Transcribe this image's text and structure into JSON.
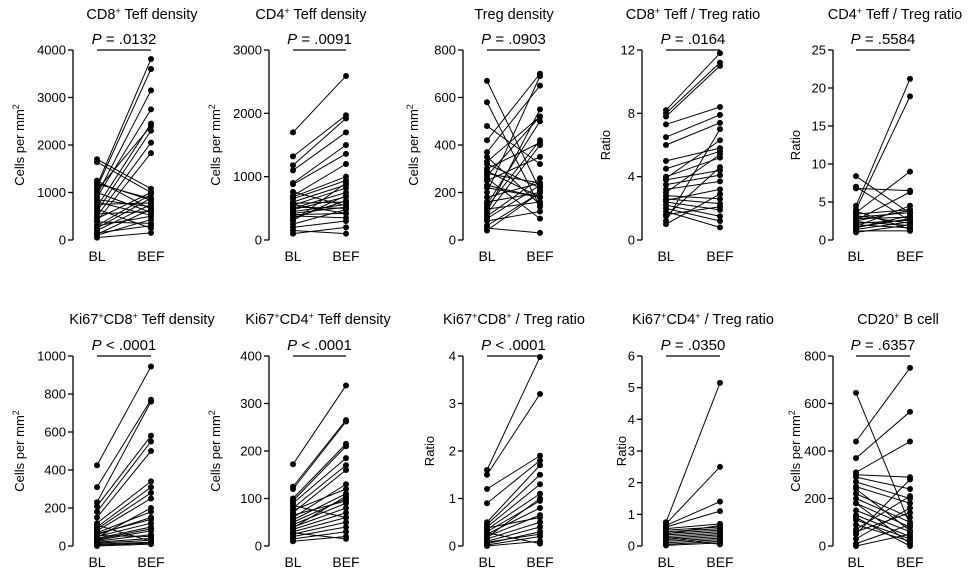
{
  "figure": {
    "categories": [
      "BL",
      "BEF"
    ],
    "colors": {
      "ink": "#000000",
      "background": "#ffffff"
    }
  },
  "chart_data": [
    {
      "type": "scatter",
      "title": {
        "pre": "CD8",
        "sup": "+",
        "post": " Teff density"
      },
      "ylabel": {
        "text": "Cells per mm",
        "sup": "2"
      },
      "ylim": [
        0,
        4000
      ],
      "yticks": [
        0,
        1000,
        2000,
        3000,
        4000
      ],
      "p_value": ".0132",
      "p_op": "=",
      "categories": [
        "BL",
        "BEF"
      ],
      "pairs": [
        [
          1700,
          1080
        ],
        [
          1640,
          1000
        ],
        [
          1250,
          650
        ],
        [
          1200,
          840
        ],
        [
          1150,
          3810
        ],
        [
          1100,
          3600
        ],
        [
          1000,
          580
        ],
        [
          950,
          3150
        ],
        [
          900,
          2750
        ],
        [
          850,
          700
        ],
        [
          800,
          520
        ],
        [
          700,
          2450
        ],
        [
          600,
          2300
        ],
        [
          500,
          2050
        ],
        [
          400,
          1830
        ],
        [
          300,
          960
        ],
        [
          250,
          880
        ],
        [
          200,
          750
        ],
        [
          150,
          300
        ],
        [
          100,
          430
        ],
        [
          50,
          150
        ],
        [
          380,
          350
        ],
        [
          450,
          1000
        ],
        [
          550,
          600
        ],
        [
          650,
          250
        ],
        [
          750,
          780
        ],
        [
          1050,
          2400
        ],
        [
          1180,
          870
        ],
        [
          120,
          650
        ],
        [
          300,
          500
        ]
      ]
    },
    {
      "type": "scatter",
      "title": {
        "pre": "CD4",
        "sup": "+",
        "post": " Teff density"
      },
      "ylabel": {
        "text": "Cells per mm",
        "sup": "2"
      },
      "ylim": [
        0,
        3000
      ],
      "yticks": [
        0,
        1000,
        2000,
        3000
      ],
      "p_value": ".0091",
      "p_op": "=",
      "categories": [
        "BL",
        "BEF"
      ],
      "pairs": [
        [
          1700,
          2590
        ],
        [
          1320,
          1970
        ],
        [
          1180,
          1920
        ],
        [
          1100,
          1700
        ],
        [
          900,
          1500
        ],
        [
          880,
          1360
        ],
        [
          700,
          1200
        ],
        [
          650,
          940
        ],
        [
          600,
          870
        ],
        [
          580,
          600
        ],
        [
          550,
          820
        ],
        [
          520,
          500
        ],
        [
          500,
          750
        ],
        [
          480,
          680
        ],
        [
          450,
          560
        ],
        [
          420,
          520
        ],
        [
          400,
          420
        ],
        [
          380,
          350
        ],
        [
          350,
          620
        ],
        [
          300,
          900
        ],
        [
          250,
          480
        ],
        [
          200,
          300
        ],
        [
          150,
          100
        ],
        [
          100,
          200
        ],
        [
          680,
          1000
        ],
        [
          760,
          540
        ],
        [
          320,
          700
        ],
        [
          560,
          420
        ]
      ]
    },
    {
      "type": "scatter",
      "title": {
        "pre": "Treg density",
        "sup": "",
        "post": ""
      },
      "ylabel": {
        "text": "Cells per mm",
        "sup": "2"
      },
      "ylim": [
        0,
        800
      ],
      "yticks": [
        0,
        200,
        400,
        600,
        800
      ],
      "p_value": ".0903",
      "p_op": "=",
      "categories": [
        "BL",
        "BEF"
      ],
      "pairs": [
        [
          670,
          210
        ],
        [
          580,
          140
        ],
        [
          480,
          320
        ],
        [
          420,
          700
        ],
        [
          370,
          650
        ],
        [
          350,
          150
        ],
        [
          330,
          520
        ],
        [
          300,
          410
        ],
        [
          290,
          180
        ],
        [
          280,
          240
        ],
        [
          260,
          90
        ],
        [
          250,
          350
        ],
        [
          220,
          180
        ],
        [
          200,
          690
        ],
        [
          180,
          240
        ],
        [
          160,
          200
        ],
        [
          150,
          500
        ],
        [
          140,
          420
        ],
        [
          130,
          160
        ],
        [
          120,
          550
        ],
        [
          100,
          260
        ],
        [
          90,
          230
        ],
        [
          80,
          120
        ],
        [
          60,
          200
        ],
        [
          50,
          30
        ],
        [
          40,
          200
        ],
        [
          320,
          220
        ],
        [
          230,
          180
        ],
        [
          110,
          400
        ],
        [
          270,
          520
        ]
      ]
    },
    {
      "type": "scatter",
      "title": {
        "pre": "CD8",
        "sup": "+",
        "post": " Teff / Treg ratio"
      },
      "ylabel": {
        "text": "Ratio",
        "sup": ""
      },
      "ylim": [
        0,
        12
      ],
      "yticks": [
        0,
        4,
        8,
        12
      ],
      "p_value": ".0164",
      "p_op": "=",
      "categories": [
        "BL",
        "BEF"
      ],
      "pairs": [
        [
          8.2,
          11.8
        ],
        [
          8.0,
          11.2
        ],
        [
          7.8,
          11.0
        ],
        [
          7.3,
          8.4
        ],
        [
          6.5,
          7.9
        ],
        [
          6.0,
          7.4
        ],
        [
          5.0,
          5.8
        ],
        [
          4.5,
          5.6
        ],
        [
          4.0,
          5.2
        ],
        [
          3.8,
          4.4
        ],
        [
          3.5,
          4.1
        ],
        [
          3.2,
          3.7
        ],
        [
          3.0,
          5.4
        ],
        [
          2.8,
          2.6
        ],
        [
          2.6,
          2.3
        ],
        [
          2.4,
          1.9
        ],
        [
          2.2,
          1.5
        ],
        [
          2.0,
          1.2
        ],
        [
          1.8,
          0.8
        ],
        [
          1.5,
          4.6
        ],
        [
          1.2,
          7.0
        ],
        [
          1.0,
          2.9
        ],
        [
          2.5,
          3.2
        ],
        [
          3.9,
          6.3
        ],
        [
          1.6,
          2.1
        ]
      ]
    },
    {
      "type": "scatter",
      "title": {
        "pre": "CD4",
        "sup": "+",
        "post": " Teff / Treg ratio"
      },
      "ylabel": {
        "text": "Ratio",
        "sup": ""
      },
      "ylim": [
        0,
        25
      ],
      "yticks": [
        0,
        5,
        10,
        15,
        20,
        25
      ],
      "p_value": ".5584",
      "p_op": "=",
      "categories": [
        "BL",
        "BEF"
      ],
      "pairs": [
        [
          8.4,
          3.5
        ],
        [
          7.0,
          2.5
        ],
        [
          6.8,
          6.5
        ],
        [
          4.5,
          21.2
        ],
        [
          4.0,
          18.9
        ],
        [
          3.6,
          9.0
        ],
        [
          3.4,
          4.0
        ],
        [
          3.2,
          2.2
        ],
        [
          3.0,
          3.6
        ],
        [
          2.8,
          3.0
        ],
        [
          2.6,
          6.3
        ],
        [
          2.4,
          1.9
        ],
        [
          2.2,
          2.6
        ],
        [
          2.0,
          1.6
        ],
        [
          1.8,
          4.5
        ],
        [
          1.6,
          3.2
        ],
        [
          1.4,
          2.4
        ],
        [
          1.2,
          1.2
        ],
        [
          1.0,
          2.0
        ],
        [
          3.8,
          1.4
        ],
        [
          2.5,
          3.9
        ],
        [
          1.7,
          2.8
        ]
      ]
    },
    {
      "type": "scatter",
      "title": {
        "pre": "Ki67",
        "sup": "+",
        "post": "CD8",
        "sup2": "+",
        "post2": " Teff density"
      },
      "ylabel": {
        "text": "Cells per mm",
        "sup": "2"
      },
      "ylim": [
        0,
        1000
      ],
      "yticks": [
        0,
        200,
        400,
        600,
        800,
        1000
      ],
      "p_value": ".0001",
      "p_op": "<",
      "categories": [
        "BL",
        "BEF"
      ],
      "pairs": [
        [
          425,
          945
        ],
        [
          310,
          770
        ],
        [
          230,
          760
        ],
        [
          210,
          580
        ],
        [
          180,
          550
        ],
        [
          150,
          500
        ],
        [
          120,
          340
        ],
        [
          100,
          310
        ],
        [
          90,
          280
        ],
        [
          80,
          250
        ],
        [
          70,
          180
        ],
        [
          60,
          150
        ],
        [
          50,
          120
        ],
        [
          40,
          100
        ],
        [
          30,
          80
        ],
        [
          25,
          60
        ],
        [
          20,
          40
        ],
        [
          15,
          30
        ],
        [
          10,
          20
        ],
        [
          5,
          15
        ],
        [
          0,
          10
        ],
        [
          45,
          200
        ],
        [
          35,
          90
        ],
        [
          55,
          50
        ],
        [
          65,
          140
        ],
        [
          110,
          25
        ]
      ]
    },
    {
      "type": "scatter",
      "title": {
        "pre": "Ki67",
        "sup": "+",
        "post": "CD4",
        "sup2": "+",
        "post2": " Teff density"
      },
      "ylabel": {
        "text": "Cells per mm",
        "sup": "2"
      },
      "ylim": [
        0,
        400
      ],
      "yticks": [
        0,
        100,
        200,
        300,
        400
      ],
      "p_value": ".0001",
      "p_op": "<",
      "categories": [
        "BL",
        "BEF"
      ],
      "pairs": [
        [
          172,
          338
        ],
        [
          125,
          265
        ],
        [
          120,
          262
        ],
        [
          100,
          215
        ],
        [
          95,
          210
        ],
        [
          90,
          185
        ],
        [
          80,
          170
        ],
        [
          70,
          160
        ],
        [
          60,
          130
        ],
        [
          55,
          110
        ],
        [
          50,
          100
        ],
        [
          45,
          90
        ],
        [
          40,
          80
        ],
        [
          35,
          70
        ],
        [
          30,
          60
        ],
        [
          25,
          50
        ],
        [
          20,
          40
        ],
        [
          15,
          30
        ],
        [
          10,
          20
        ],
        [
          65,
          95
        ],
        [
          75,
          120
        ],
        [
          85,
          60
        ],
        [
          38,
          105
        ],
        [
          28,
          15
        ]
      ]
    },
    {
      "type": "scatter",
      "title": {
        "pre": "Ki67",
        "sup": "+",
        "post": "CD8",
        "sup2": "+",
        "post2": " / Treg ratio"
      },
      "ylabel": {
        "text": "Ratio",
        "sup": ""
      },
      "ylim": [
        0,
        4
      ],
      "yticks": [
        0,
        1,
        2,
        3,
        4
      ],
      "p_value": ".0001",
      "p_op": "<",
      "categories": [
        "BL",
        "BEF"
      ],
      "pairs": [
        [
          1.6,
          3.98
        ],
        [
          1.5,
          3.2
        ],
        [
          1.2,
          1.9
        ],
        [
          0.9,
          1.8
        ],
        [
          0.5,
          1.7
        ],
        [
          0.45,
          1.5
        ],
        [
          0.4,
          1.3
        ],
        [
          0.35,
          1.1
        ],
        [
          0.3,
          0.95
        ],
        [
          0.25,
          0.8
        ],
        [
          0.2,
          0.65
        ],
        [
          0.15,
          0.5
        ],
        [
          0.1,
          0.4
        ],
        [
          0.05,
          0.3
        ],
        [
          0.02,
          0.2
        ],
        [
          0.0,
          0.1
        ],
        [
          0.28,
          0.05
        ],
        [
          0.38,
          0.6
        ],
        [
          0.18,
          1.0
        ],
        [
          0.08,
          0.25
        ]
      ]
    },
    {
      "type": "scatter",
      "title": {
        "pre": "Ki67",
        "sup": "+",
        "post": "CD4",
        "sup2": "+",
        "post2": " / Treg ratio"
      },
      "ylabel": {
        "text": "Ratio",
        "sup": ""
      },
      "ylim": [
        0,
        6
      ],
      "yticks": [
        0,
        1,
        2,
        3,
        4,
        5,
        6
      ],
      "p_value": ".0350",
      "p_op": "=",
      "categories": [
        "BL",
        "BEF"
      ],
      "pairs": [
        [
          0.75,
          5.15
        ],
        [
          0.7,
          2.5
        ],
        [
          0.65,
          1.4
        ],
        [
          0.6,
          1.1
        ],
        [
          0.55,
          0.7
        ],
        [
          0.5,
          0.6
        ],
        [
          0.45,
          0.55
        ],
        [
          0.4,
          0.5
        ],
        [
          0.35,
          0.45
        ],
        [
          0.3,
          0.4
        ],
        [
          0.25,
          0.35
        ],
        [
          0.2,
          0.3
        ],
        [
          0.15,
          0.25
        ],
        [
          0.1,
          0.2
        ],
        [
          0.05,
          0.15
        ],
        [
          0.02,
          0.1
        ],
        [
          0.38,
          0.65
        ],
        [
          0.28,
          0.05
        ]
      ]
    },
    {
      "type": "scatter",
      "title": {
        "pre": "CD20",
        "sup": "+",
        "post": " B cell"
      },
      "ylabel": {
        "text": "Cells per mm",
        "sup": "2"
      },
      "ylim": [
        0,
        800
      ],
      "yticks": [
        0,
        200,
        400,
        600,
        800
      ],
      "p_value": ".6357",
      "p_op": "=",
      "categories": [
        "BL",
        "BEF"
      ],
      "pairs": [
        [
          645,
          90
        ],
        [
          440,
          750
        ],
        [
          370,
          565
        ],
        [
          310,
          440
        ],
        [
          300,
          290
        ],
        [
          290,
          240
        ],
        [
          270,
          200
        ],
        [
          250,
          180
        ],
        [
          220,
          120
        ],
        [
          200,
          100
        ],
        [
          180,
          80
        ],
        [
          150,
          60
        ],
        [
          130,
          40
        ],
        [
          110,
          30
        ],
        [
          90,
          20
        ],
        [
          70,
          210
        ],
        [
          50,
          280
        ],
        [
          30,
          160
        ],
        [
          10,
          90
        ],
        [
          0,
          50
        ],
        [
          180,
          10
        ],
        [
          120,
          0
        ],
        [
          240,
          65
        ],
        [
          60,
          140
        ]
      ]
    }
  ]
}
